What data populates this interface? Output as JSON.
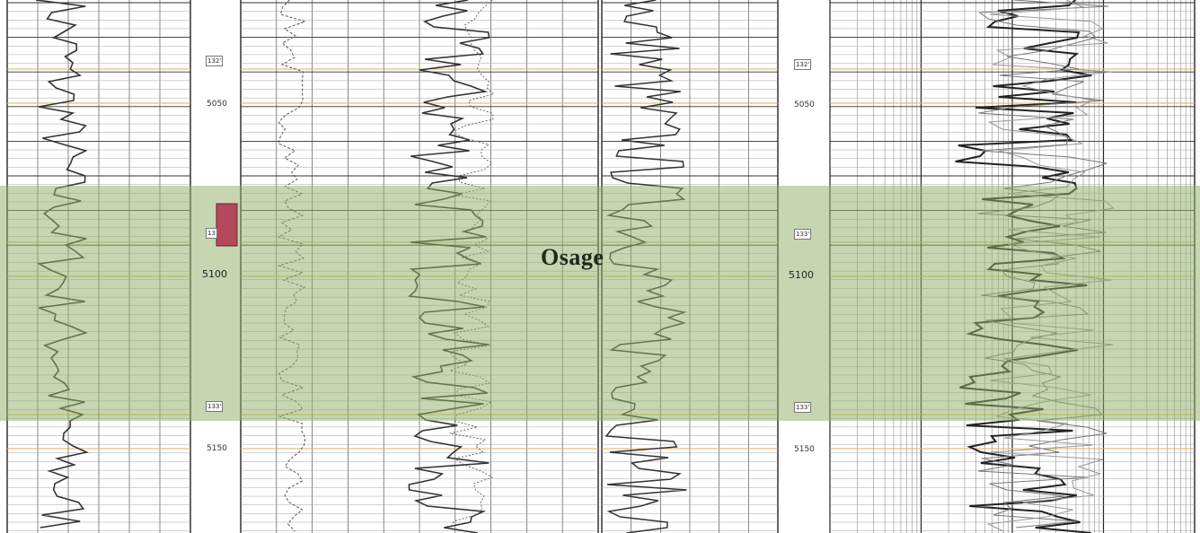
{
  "zone": {
    "label": "Osage",
    "fill": "#8fb06a"
  },
  "marker": {
    "color": "#b24a5c"
  },
  "depth_track_a": {
    "labels": [
      "132'",
      "5050",
      "13",
      "5100",
      "133'",
      "5150"
    ]
  },
  "depth_track_b": {
    "labels": [
      "132'",
      "5050",
      "133'",
      "5100",
      "133'",
      "5150"
    ]
  }
}
